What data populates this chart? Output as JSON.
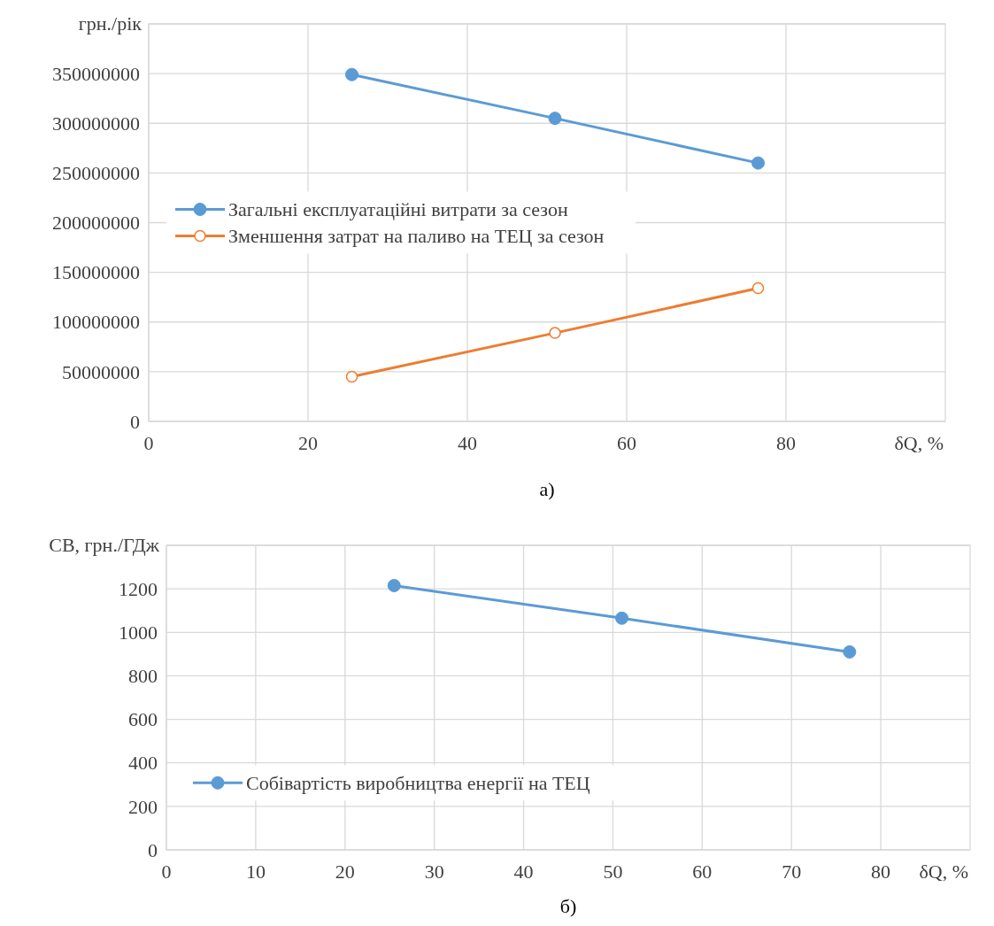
{
  "chart_data": [
    {
      "type": "line",
      "title": "а)",
      "xlabel": "δQ, %",
      "ylabel": "грн./рік",
      "x": [
        25.5,
        51,
        76.5
      ],
      "series": [
        {
          "name": "Загальні експлуатаційні витрати за сезон",
          "color": "#5b9bd5",
          "marker": "circle",
          "values": [
            349000000,
            305000000,
            260000000
          ]
        },
        {
          "name": "Зменшення затрат на паливо на ТЕЦ за сезон",
          "color": "#ed7d31",
          "marker": "circle-open",
          "values": [
            45000000,
            89000000,
            134000000
          ]
        }
      ],
      "xlim": [
        0,
        100
      ],
      "xticks": [
        0,
        20,
        40,
        60,
        80
      ],
      "ylim": [
        0,
        400000000
      ],
      "yticks": [
        0,
        50000000,
        100000000,
        150000000,
        200000000,
        250000000,
        300000000,
        350000000,
        {
          "value": 400000000,
          "label": null
        }
      ],
      "grid": true,
      "legend": "left"
    },
    {
      "type": "line",
      "title": "б)",
      "xlabel": "δQ, %",
      "ylabel": "СВ, грн./ГДж",
      "x": [
        25.5,
        51,
        76.5
      ],
      "series": [
        {
          "name": "Собівартість виробництва енергії на ТЕЦ",
          "color": "#5b9bd5",
          "marker": "circle",
          "values": [
            1215,
            1065,
            910
          ]
        }
      ],
      "xlim": [
        0,
        90
      ],
      "xticks": [
        0,
        10,
        20,
        30,
        40,
        50,
        60,
        70,
        80
      ],
      "ylim": [
        0,
        1400
      ],
      "yticks": [
        0,
        200,
        400,
        600,
        800,
        1000,
        1200,
        {
          "value": 1400,
          "label": null
        }
      ],
      "grid": true,
      "legend": "bottom left"
    }
  ]
}
